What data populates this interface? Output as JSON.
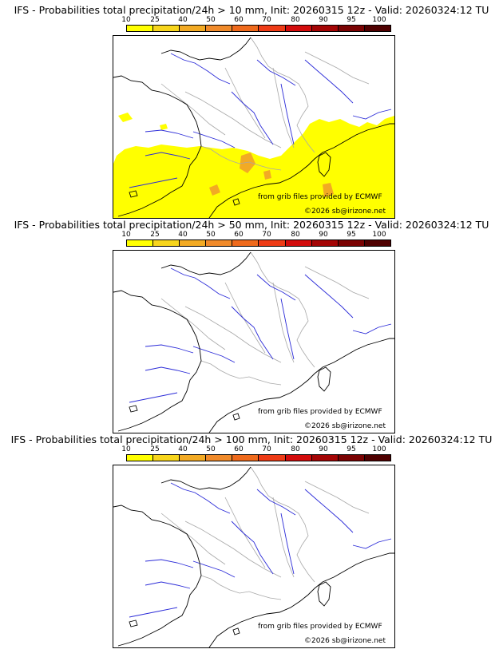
{
  "colors": {
    "scale": [
      "#ffff00",
      "#f7d51c",
      "#f2aa24",
      "#f08a2a",
      "#ef6a1c",
      "#ee3b16",
      "#d30c0c",
      "#a40505",
      "#7a0202",
      "#4f0000"
    ],
    "coast": "#000000",
    "rivers": "#2b2bd8",
    "borders": "#a8a8a8",
    "precip_low": "#ffff00",
    "precip_mid": "#f2aa24"
  },
  "colorbar": {
    "ticks": [
      "10",
      "25",
      "40",
      "50",
      "60",
      "70",
      "80",
      "90",
      "95",
      "100"
    ]
  },
  "panels": [
    {
      "title": "IFS - Probabilities total precipitation/24h > 10 mm, Init: 20260315 12z - Valid: 20260324:12 TU",
      "credit_source": "from grib files provided by ECMWF",
      "credit_copyright": "©2026 sb@irizone.net",
      "has_precip": true
    },
    {
      "title": "IFS - Probabilities total precipitation/24h > 50 mm, Init: 20260315 12z - Valid: 20260324:12 TU",
      "credit_source": "from grib files provided by ECMWF",
      "credit_copyright": "©2026 sb@irizone.net",
      "has_precip": false
    },
    {
      "title": "IFS - Probabilities total precipitation/24h > 100 mm, Init: 20260315 12z - Valid: 20260324:12 TU",
      "credit_source": "from grib files provided by ECMWF",
      "credit_copyright": "©2026 sb@irizone.net",
      "has_precip": false
    }
  ]
}
